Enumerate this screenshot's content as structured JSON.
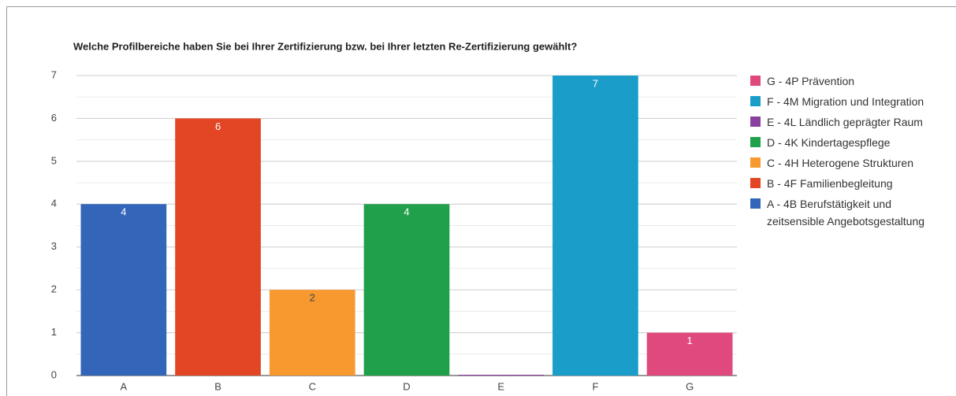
{
  "chart_data": {
    "type": "bar",
    "title": "Welche Profilbereiche haben Sie bei Ihrer Zertifizierung bzw. bei Ihrer letzten Re-Zertifizierung gewählt?",
    "categories": [
      "A",
      "B",
      "C",
      "D",
      "E",
      "F",
      "G"
    ],
    "values": [
      4,
      6,
      2,
      4,
      0,
      7,
      1
    ],
    "colors": [
      "#3366b8",
      "#e34625",
      "#f7992f",
      "#20a04a",
      "#8b3fa0",
      "#1a9ec9",
      "#e0497d"
    ],
    "label_colors": [
      "#ffffff",
      "#ffffff",
      "#444444",
      "#ffffff",
      "#ffffff",
      "#ffffff",
      "#ffffff"
    ],
    "legend": [
      "A - 4B Berufstätigkeit und zeitsensible Angebotsgestaltung",
      "B - 4F Familienbegleitung",
      "C - 4H Heterogene Strukturen",
      "D - 4K Kindertagespflege",
      "E - 4L Ländlich geprägter Raum",
      "F - 4M Migration und Integration",
      "G - 4P Prävention"
    ],
    "ylim": [
      0,
      7
    ],
    "yticks": [
      0,
      1,
      2,
      3,
      4,
      5,
      6,
      7
    ],
    "grid": true
  }
}
